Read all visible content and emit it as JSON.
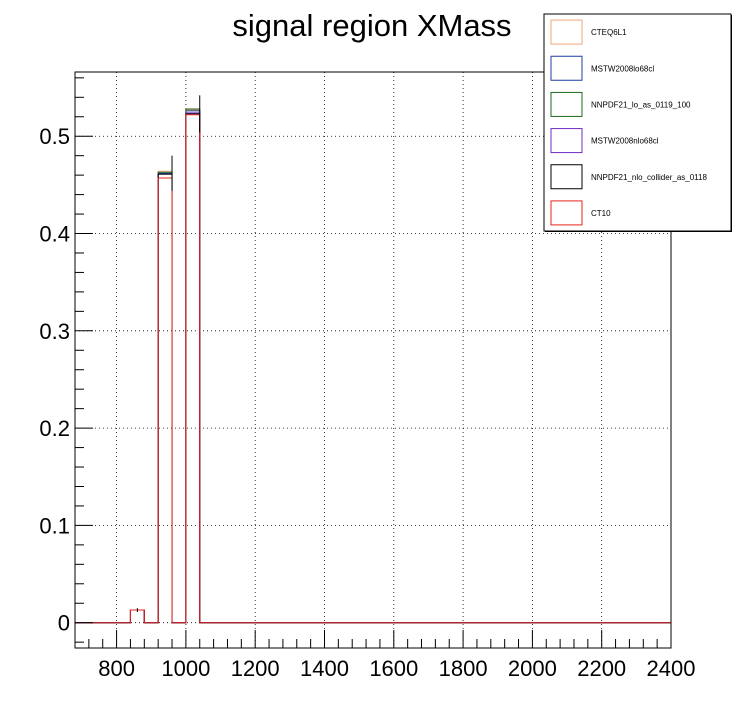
{
  "chart_data": {
    "type": "histogram",
    "title": "signal region XMass",
    "xlabel": "",
    "ylabel": "",
    "xlim": [
      680,
      2400
    ],
    "ylim": [
      -0.026,
      0.566
    ],
    "x_ticks": [
      800,
      1000,
      1200,
      1400,
      1600,
      1800,
      2000,
      2200,
      2400
    ],
    "x_tick_labels": [
      "800",
      "1000",
      "1200",
      "1400",
      "1600",
      "1800",
      "2000",
      "2200",
      "2400"
    ],
    "y_ticks": [
      0,
      0.1,
      0.2,
      0.3,
      0.4,
      0.5
    ],
    "y_tick_labels": [
      "0",
      "0.1",
      "0.2",
      "0.3",
      "0.4",
      "0.5"
    ],
    "grid": true,
    "legend_position": "top-right",
    "bin_edges": [
      680,
      720,
      760,
      800,
      840,
      880,
      920,
      960,
      1000,
      1040,
      1080,
      1120,
      1160,
      1200,
      1240,
      1280,
      1320,
      1360,
      1400,
      1440,
      1480,
      1520,
      1560,
      1600,
      1640,
      1680,
      1720,
      1760,
      1800,
      1840,
      1880,
      1920,
      1960,
      2000,
      2040,
      2080,
      2120,
      2160,
      2200,
      2240,
      2280,
      2320,
      2360,
      2400
    ],
    "series": [
      {
        "name": "CTEQ6L1",
        "color": "#f2a779",
        "z": 1,
        "values": [
          0,
          0,
          0,
          0,
          0.013,
          0,
          0.464,
          0,
          0.527,
          0,
          0,
          0,
          0,
          0,
          0,
          0,
          0,
          0,
          0,
          0,
          0,
          0,
          0,
          0,
          0,
          0,
          0,
          0,
          0,
          0,
          0,
          0,
          0,
          0,
          0,
          0,
          0,
          0,
          0,
          0,
          0,
          0,
          0
        ]
      },
      {
        "name": "MSTW2008lo68cl",
        "color": "#1f3f9f",
        "z": 2,
        "values": [
          0,
          0,
          0,
          0,
          0.013,
          0,
          0.462,
          0,
          0.526,
          0,
          0,
          0,
          0,
          0,
          0,
          0,
          0,
          0,
          0,
          0,
          0,
          0,
          0,
          0,
          0,
          0,
          0,
          0,
          0,
          0,
          0,
          0,
          0,
          0,
          0,
          0,
          0,
          0,
          0,
          0,
          0,
          0,
          0
        ]
      },
      {
        "name": "NNPDF21_lo_as_0119_100",
        "color": "#1a6b1a",
        "z": 3,
        "values": [
          0,
          0,
          0,
          0,
          0.013,
          0,
          0.463,
          0,
          0.528,
          0,
          0,
          0,
          0,
          0,
          0,
          0,
          0,
          0,
          0,
          0,
          0,
          0,
          0,
          0,
          0,
          0,
          0,
          0,
          0,
          0,
          0,
          0,
          0,
          0,
          0,
          0,
          0,
          0,
          0,
          0,
          0,
          0,
          0
        ]
      },
      {
        "name": "MSTW2008nlo68cl",
        "color": "#6a2cc4",
        "z": 4,
        "values": [
          0,
          0,
          0,
          0,
          0.013,
          0,
          0.461,
          0,
          0.524,
          0,
          0,
          0,
          0,
          0,
          0,
          0,
          0,
          0,
          0,
          0,
          0,
          0,
          0,
          0,
          0,
          0,
          0,
          0,
          0,
          0,
          0,
          0,
          0,
          0,
          0,
          0,
          0,
          0,
          0,
          0,
          0,
          0,
          0
        ]
      },
      {
        "name": "NNPDF21_nlo_collider_as_0118",
        "color": "#000000",
        "z": 5,
        "values": [
          0,
          0,
          0,
          0,
          0.013,
          0,
          0.461,
          0,
          0.523,
          0,
          0,
          0,
          0,
          0,
          0,
          0,
          0,
          0,
          0,
          0,
          0,
          0,
          0,
          0,
          0,
          0,
          0,
          0,
          0,
          0,
          0,
          0,
          0,
          0,
          0,
          0,
          0,
          0,
          0,
          0,
          0,
          0,
          0
        ],
        "errors_at": [
          {
            "x": 860,
            "y": 0.013,
            "err": 0.002
          },
          {
            "x": 960,
            "y": 0.462,
            "err": 0.018
          },
          {
            "x": 1040,
            "y": 0.523,
            "err": 0.019
          }
        ]
      },
      {
        "name": "CT10",
        "color": "#e8231f",
        "z": 6,
        "values": [
          0,
          0,
          0,
          0,
          0.013,
          0,
          0.457,
          0,
          0.522,
          0,
          0,
          0,
          0,
          0,
          0,
          0,
          0,
          0,
          0,
          0,
          0,
          0,
          0,
          0,
          0,
          0,
          0,
          0,
          0,
          0,
          0,
          0,
          0,
          0,
          0,
          0,
          0,
          0,
          0,
          0,
          0,
          0,
          0
        ]
      }
    ]
  }
}
